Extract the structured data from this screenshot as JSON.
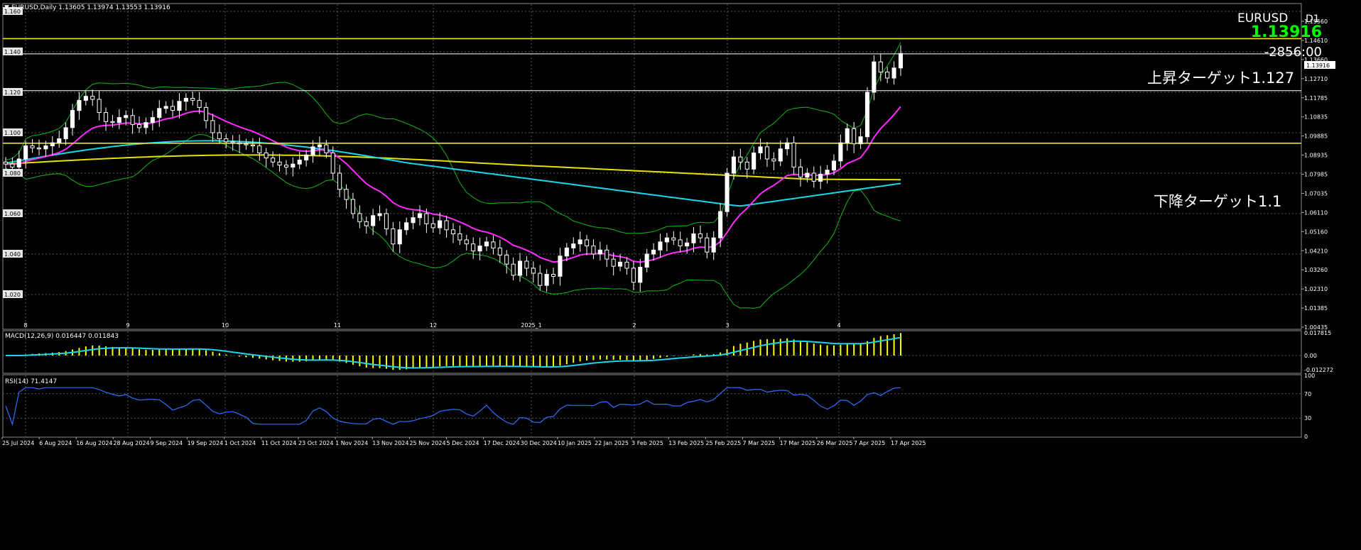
{
  "header": {
    "symbol_line": "EURUSD,Daily  1.13605 1.13974 1.13553 1.13916"
  },
  "overlay": {
    "symbol": "EURUSD",
    "timeframe": "D1",
    "price": "1.13916",
    "countdown": "-2856:00",
    "price_tag": "1.13916",
    "upper_target": "上昇ターゲット1.127",
    "lower_target": "下降ターゲット1.1"
  },
  "colors": {
    "background": "#000000",
    "grid": "#5a5a5a",
    "candle": "#ffffff",
    "ma_magenta": "#ff2bff",
    "ma_cyan": "#19d6e8",
    "ma_yellow": "#e8e000",
    "bollinger": "#12b812",
    "hline_yellow": "#e8e800",
    "hline_white": "#ffffff",
    "macd_hist": "#ffff00",
    "macd_signal": "#19d6e8",
    "rsi_line": "#2f6fff",
    "price_green": "#00ff00"
  },
  "main_pane": {
    "left_labels": [
      "1.160",
      "1.140",
      "1.120",
      "1.100",
      "1.080",
      "1.060",
      "1.040",
      "1.020"
    ],
    "right_labels": [
      "1.15560",
      "1.14610",
      "1.13660",
      "1.12710",
      "1.11785",
      "1.10835",
      "1.09885",
      "1.08935",
      "1.07985",
      "1.07035",
      "1.06110",
      "1.05160",
      "1.04210",
      "1.03260",
      "1.02310",
      "1.01385",
      "1.00435"
    ],
    "month_labels": [
      "8",
      "9",
      "10",
      "11",
      "12",
      "2025_1",
      "2",
      "3",
      "4"
    ]
  },
  "macd_pane": {
    "title": "MACD(12,26,9) 0.016447 0.011843",
    "right_labels": [
      "0.017815",
      "0.00",
      "-0.012272"
    ]
  },
  "rsi_pane": {
    "title": "RSI(14) 71.4147",
    "right_labels": [
      "100",
      "70",
      "30",
      "0"
    ]
  },
  "date_axis": [
    "25 Jul 2024",
    "6 Aug 2024",
    "16 Aug 2024",
    "28 Aug 2024",
    "9 Sep 2024",
    "19 Sep 2024",
    "1 Oct 2024",
    "11 Oct 2024",
    "23 Oct 2024",
    "1 Nov 2024",
    "13 Nov 2024",
    "25 Nov 2024",
    "5 Dec 2024",
    "17 Dec 2024",
    "30 Dec 2024",
    "10 Jan 2025",
    "22 Jan 2025",
    "3 Feb 2025",
    "13 Feb 2025",
    "25 Feb 2025",
    "7 Mar 2025",
    "17 Mar 2025",
    "26 Mar 2025",
    "7 Apr 2025",
    "17 Apr 2025"
  ],
  "chart_data": {
    "type": "candlestick",
    "symbol": "EURUSD",
    "timeframe": "Daily",
    "last_bar": {
      "open": 1.13605,
      "high": 1.13974,
      "low": 1.13553,
      "close": 1.13916
    },
    "ylim": [
      1.00435,
      1.165
    ],
    "horizontal_lines": [
      {
        "price": 1.1465,
        "color": "yellow"
      },
      {
        "price": 1.139,
        "color": "white"
      },
      {
        "price": 1.1208,
        "color": "white"
      },
      {
        "price": 1.0948,
        "color": "yellow"
      }
    ],
    "close_series": [
      1.0845,
      1.083,
      1.087,
      1.0935,
      1.0925,
      1.092,
      1.0935,
      1.095,
      1.097,
      1.1025,
      1.111,
      1.116,
      1.118,
      1.1165,
      1.11,
      1.1055,
      1.105,
      1.1075,
      1.1085,
      1.104,
      1.1025,
      1.105,
      1.1075,
      1.112,
      1.113,
      1.111,
      1.1155,
      1.117,
      1.116,
      1.1125,
      1.106,
      1.1,
      1.097,
      1.0955,
      1.095,
      1.0945,
      1.094,
      1.0935,
      1.09,
      1.0875,
      1.0855,
      1.084,
      1.083,
      1.0845,
      1.0865,
      1.089,
      1.093,
      1.094,
      1.09,
      1.08,
      1.072,
      1.067,
      1.06,
      1.056,
      1.054,
      1.059,
      1.06,
      1.0525,
      1.045,
      1.052,
      1.0555,
      1.058,
      1.06,
      1.055,
      1.053,
      1.0565,
      1.052,
      1.05,
      1.047,
      1.045,
      1.0415,
      1.044,
      1.046,
      1.043,
      1.0395,
      1.035,
      1.0295,
      1.0365,
      1.033,
      1.0305,
      1.0245,
      1.03,
      1.029,
      1.039,
      1.043,
      1.045,
      1.047,
      1.044,
      1.04,
      1.042,
      1.0375,
      1.034,
      1.036,
      1.033,
      1.026,
      1.0335,
      1.04,
      1.042,
      1.046,
      1.048,
      1.047,
      1.044,
      1.0455,
      1.05,
      1.048,
      1.041,
      1.048,
      1.061,
      1.08,
      1.088,
      1.0855,
      1.082,
      1.09,
      1.093,
      1.087,
      1.086,
      1.092,
      1.095,
      1.083,
      1.078,
      1.08,
      1.076,
      1.0795,
      1.0815,
      1.086,
      1.095,
      1.102,
      1.0945,
      1.098,
      1.12,
      1.135,
      1.13,
      1.127,
      1.132,
      1.1392
    ]
  }
}
